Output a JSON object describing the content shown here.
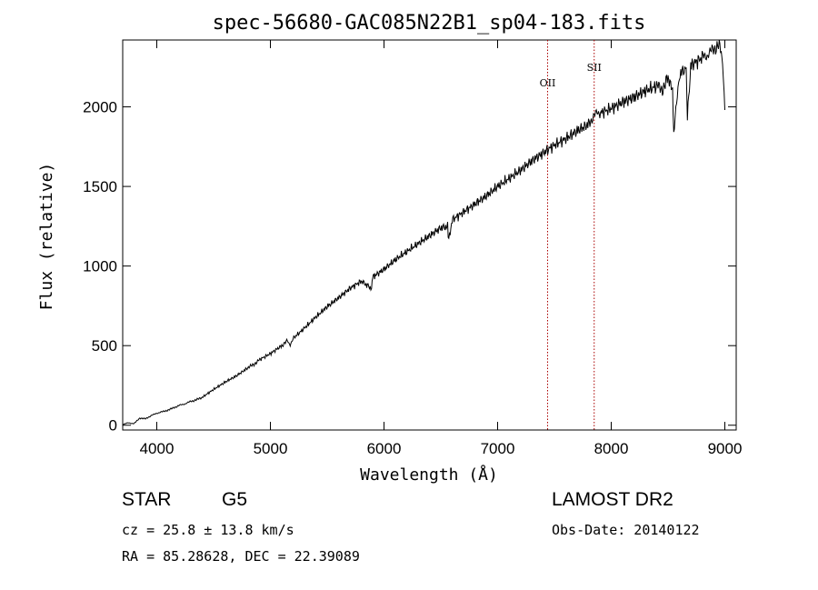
{
  "chart_data": {
    "type": "line",
    "title": "spec-56680-GAC085N22B1_sp04-183.fits",
    "xlabel": "Wavelength (Å)",
    "ylabel": "Flux (relative)",
    "xlim": [
      3700,
      9100
    ],
    "ylim": [
      -30,
      2420
    ],
    "xticks": [
      4000,
      5000,
      6000,
      7000,
      8000,
      9000
    ],
    "yticks": [
      0,
      500,
      1000,
      1500,
      2000
    ],
    "grid": false,
    "series": [
      {
        "color": "#000000",
        "x": [
          3700,
          3750,
          3800,
          3850,
          3900,
          3950,
          4000,
          4050,
          4100,
          4150,
          4200,
          4250,
          4300,
          4350,
          4400,
          4500,
          4600,
          4700,
          4800,
          4850,
          4900,
          5000,
          5100,
          5150,
          5180,
          5200,
          5300,
          5400,
          5500,
          5600,
          5700,
          5800,
          5890,
          5900,
          6000,
          6100,
          6200,
          6300,
          6400,
          6500,
          6560,
          6570,
          6600,
          6700,
          6800,
          6900,
          7000,
          7100,
          7200,
          7300,
          7400,
          7500,
          7600,
          7700,
          7800,
          7850,
          7900,
          8000,
          8100,
          8200,
          8300,
          8400,
          8450,
          8500,
          8540,
          8550,
          8600,
          8660,
          8670,
          8700,
          8800,
          8850,
          8900,
          8950,
          8980,
          9000
        ],
        "values": [
          5,
          15,
          10,
          45,
          40,
          60,
          75,
          85,
          95,
          110,
          125,
          135,
          150,
          160,
          175,
          225,
          270,
          310,
          360,
          380,
          410,
          450,
          500,
          530,
          500,
          545,
          610,
          680,
          745,
          800,
          860,
          905,
          860,
          930,
          980,
          1040,
          1090,
          1140,
          1190,
          1240,
          1250,
          1160,
          1290,
          1340,
          1390,
          1440,
          1500,
          1550,
          1600,
          1660,
          1710,
          1760,
          1800,
          1850,
          1890,
          1950,
          1960,
          1990,
          2030,
          2060,
          2100,
          2130,
          2110,
          2180,
          2110,
          1830,
          2200,
          2250,
          1930,
          2260,
          2310,
          2330,
          2360,
          2400,
          2300,
          1980
        ]
      }
    ],
    "lines": [
      {
        "label": "OII",
        "x": 7440,
        "color": "#aa0000"
      },
      {
        "label": "SII",
        "x": 7850,
        "color": "#aa0000"
      }
    ]
  },
  "info": {
    "object_type": "STAR",
    "subclass": "G5",
    "survey": "LAMOST DR2",
    "cz": "cz = 25.8 ± 13.8 km/s",
    "obs_date": "Obs-Date: 20140122",
    "coords": "RA =  85.28628, DEC =  22.39089"
  }
}
